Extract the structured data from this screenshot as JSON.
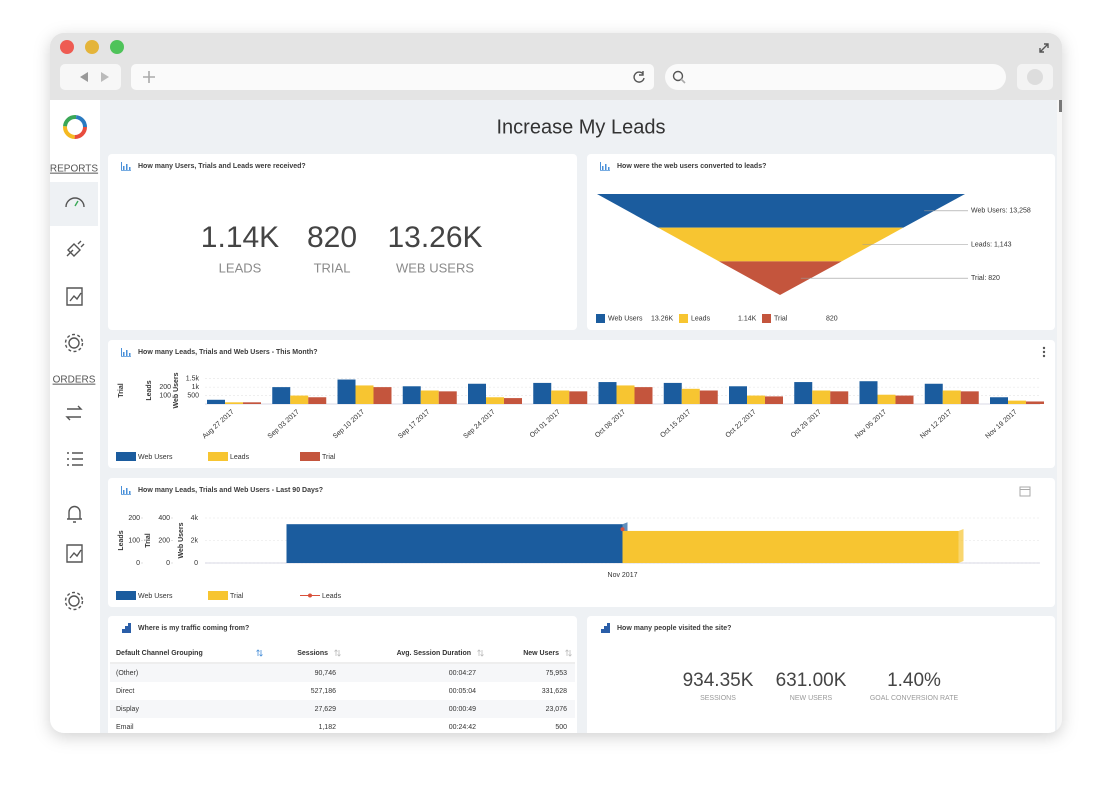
{
  "page_title": "Increase My Leads",
  "sidebar": {
    "sections": [
      "REPORTS",
      "ORDERS"
    ]
  },
  "summary": {
    "title": "How many Users, Trials and Leads were received?",
    "metrics": [
      {
        "value": "1.14K",
        "label": "LEADS"
      },
      {
        "value": "820",
        "label": "TRIAL"
      },
      {
        "value": "13.26K",
        "label": "WEB USERS"
      }
    ]
  },
  "traffic_table": {
    "title": "Where is my traffic coming from?",
    "columns": [
      "Default Channel Grouping",
      "Sessions",
      "Avg. Session Duration",
      "New Users"
    ],
    "rows": [
      [
        "(Other)",
        "90,746",
        "00:04:27",
        "75,953"
      ],
      [
        "Direct",
        "527,186",
        "00:05:04",
        "331,628"
      ],
      [
        "Display",
        "27,629",
        "00:00:49",
        "23,076"
      ],
      [
        "Email",
        "1,182",
        "00:24:42",
        "500"
      ]
    ]
  },
  "visits": {
    "title": "How many people visited the site?",
    "metrics": [
      {
        "value": "934.35K",
        "label": "SESSIONS"
      },
      {
        "value": "631.00K",
        "label": "NEW USERS"
      },
      {
        "value": "1.40%",
        "label": "GOAL CONVERSION RATE"
      }
    ]
  },
  "chart_data": [
    {
      "type": "funnel",
      "title": "How were the web users converted to leads?",
      "categories": [
        "Web Users",
        "Leads",
        "Trial"
      ],
      "values": [
        13258,
        1143,
        820
      ],
      "value_labels": [
        "13.26K",
        "1.14K",
        "820"
      ],
      "annotations": [
        "Web Users: 13,258",
        "Leads: 1,143",
        "Trial: 820"
      ],
      "colors": [
        "#1b5c9e",
        "#f7c531",
        "#c4553d"
      ]
    },
    {
      "type": "bar",
      "title": "How many Leads, Trials and Web Users - This Month?",
      "categories": [
        "Aug 27 2017",
        "Sep 03 2017",
        "Sep 10 2017",
        "Sep 17 2017",
        "Sep 24 2017",
        "Oct 01 2017",
        "Oct 08 2017",
        "Oct 15 2017",
        "Oct 22 2017",
        "Oct 29 2017",
        "Nov 05 2017",
        "Nov 12 2017",
        "Nov 19 2017"
      ],
      "series": [
        {
          "name": "Web Users",
          "color": "#1b5c9e",
          "axis": "y",
          "values": [
            250,
            1000,
            1450,
            1050,
            1200,
            1250,
            1300,
            1250,
            1050,
            1300,
            1350,
            1200,
            400
          ]
        },
        {
          "name": "Leads",
          "color": "#f7c531",
          "axis": "y2",
          "values": [
            20,
            100,
            220,
            160,
            80,
            160,
            220,
            180,
            100,
            160,
            110,
            160,
            40
          ]
        },
        {
          "name": "Trial",
          "color": "#c4553d",
          "axis": "y3",
          "values": [
            20,
            80,
            200,
            150,
            70,
            150,
            200,
            160,
            90,
            150,
            100,
            150,
            30
          ]
        }
      ],
      "ylabel": "Web Users",
      "ylim": [
        0,
        1600
      ],
      "yticks": [
        500,
        {
          "value": 1000,
          "label": "1k"
        },
        {
          "value": 1500,
          "label": "1.5k"
        }
      ],
      "y2label": "Leads",
      "y2lim": [
        0,
        320
      ],
      "y2ticks": [
        100,
        200
      ],
      "y3label": "Trial",
      "y3lim": [
        0,
        320
      ],
      "grid": true
    },
    {
      "type": "combo",
      "title": "How many Leads, Trials and Web Users - Last 90 Days?",
      "categories": [
        "Nov 2017"
      ],
      "series": [
        {
          "name": "Web Users",
          "type": "bar",
          "color": "#1b5c9e",
          "axis": "y",
          "values": [
            3450
          ]
        },
        {
          "name": "Trial",
          "type": "bar",
          "color": "#f7c531",
          "axis": "y2",
          "values": [
            285
          ]
        },
        {
          "name": "Leads",
          "type": "line",
          "color": "#d9503a",
          "axis": "y3",
          "values": [
            150
          ]
        }
      ],
      "ylabel": "Web Users",
      "ylim": [
        0,
        4000
      ],
      "yticks": [
        0,
        {
          "value": 2000,
          "label": "2k"
        },
        {
          "value": 4000,
          "label": "4k"
        }
      ],
      "y2label": "Trial",
      "y2lim": [
        0,
        400
      ],
      "y2ticks": [
        0,
        200,
        400
      ],
      "y3label": "Leads",
      "y3lim": [
        0,
        200
      ],
      "y3ticks": [
        0,
        100,
        200
      ],
      "grid": true
    }
  ]
}
